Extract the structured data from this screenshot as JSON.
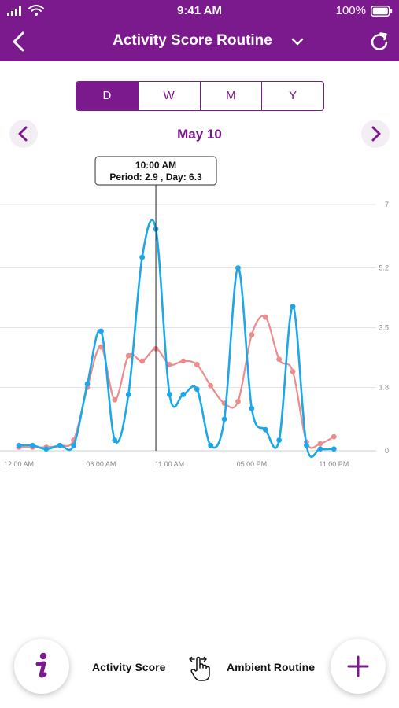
{
  "status_bar": {
    "time": "9:41 AM",
    "battery_pct": "100%",
    "icons": [
      "signal-icon",
      "wifi-icon",
      "battery-icon"
    ]
  },
  "nav": {
    "title": "Activity Score Routine",
    "icons": [
      "back-arrow-icon",
      "chevron-down-icon",
      "refresh-icon"
    ]
  },
  "segments": [
    {
      "label": "D",
      "active": true
    },
    {
      "label": "W",
      "active": false
    },
    {
      "label": "M",
      "active": false
    },
    {
      "label": "Y",
      "active": false
    }
  ],
  "date_nav": {
    "label": "May 10",
    "icons": [
      "chevron-left-icon",
      "chevron-right-icon"
    ]
  },
  "colors": {
    "brand": "#7b1a8c",
    "activity": "#1ea7e8",
    "ambient": "#ee8c8c",
    "grid": "#e4e4e4"
  },
  "chart_data": {
    "type": "line",
    "title": "",
    "xlabel": "",
    "ylabel": "",
    "y_ticks": [
      "7",
      "5.2",
      "3.5",
      "1.8",
      "0"
    ],
    "y_tick_values": [
      7,
      5.2,
      3.5,
      1.8,
      0
    ],
    "ylim": [
      0,
      7
    ],
    "xlim": [
      0,
      23.5
    ],
    "x_ticks": [
      "12:00 AM",
      "06:00 AM",
      "11:00 AM",
      "05:00 PM",
      "11:00 PM"
    ],
    "x_tick_values": [
      0,
      6,
      11,
      17,
      23
    ],
    "grid": true,
    "y_axis_side": "right",
    "series": [
      {
        "name": "Activity Score",
        "color": "#1ea7e8",
        "x": [
          0,
          1,
          2,
          3,
          4,
          5,
          6,
          7,
          8,
          9,
          10,
          11,
          12,
          13,
          14,
          15,
          16,
          17,
          18,
          19,
          20,
          21,
          22,
          23
        ],
        "y": [
          0.15,
          0.15,
          0.05,
          0.15,
          0.15,
          1.9,
          3.4,
          0.3,
          1.6,
          5.5,
          6.3,
          1.6,
          1.6,
          1.75,
          0.15,
          0.9,
          5.2,
          1.2,
          0.6,
          0.3,
          4.1,
          0.15,
          0.05,
          0.05
        ]
      },
      {
        "name": "Ambient Routine",
        "color": "#ee8c8c",
        "x": [
          0,
          1,
          2,
          3,
          4,
          5,
          6,
          7,
          8,
          9,
          10,
          11,
          12,
          13,
          14,
          15,
          16,
          17,
          18,
          19,
          20,
          21,
          22,
          23
        ],
        "y": [
          0.1,
          0.1,
          0.1,
          0.15,
          0.3,
          1.8,
          2.95,
          1.45,
          2.7,
          2.55,
          2.9,
          2.45,
          2.55,
          2.45,
          1.85,
          1.35,
          1.4,
          3.3,
          3.8,
          2.6,
          2.25,
          0.25,
          0.2,
          0.4
        ]
      }
    ],
    "tooltip": {
      "time": "10:00 AM",
      "text": "Period: 2.9 , Day: 6.3",
      "x": 10
    }
  },
  "bottom": {
    "legend": [
      "Activity Score",
      "Ambient Routine"
    ],
    "icons": [
      "info-icon",
      "swipe-gesture-icon",
      "plus-icon"
    ]
  }
}
